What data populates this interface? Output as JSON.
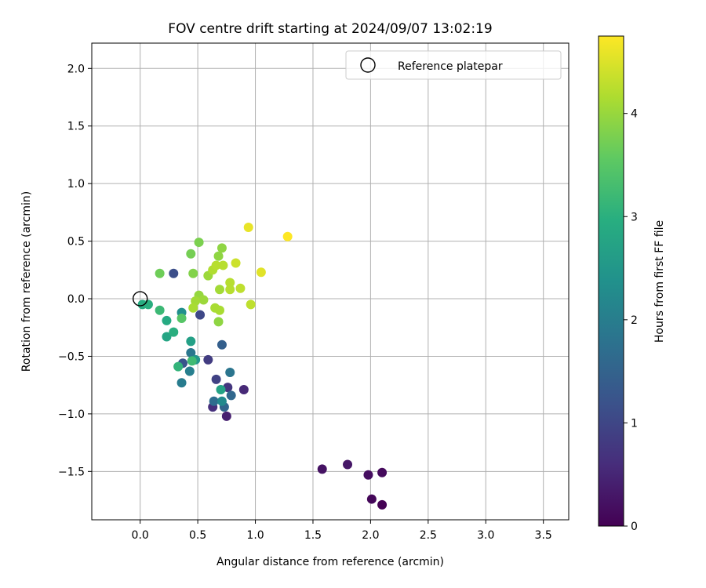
{
  "chart_data": {
    "type": "scatter",
    "title": "FOV centre drift starting at 2024/09/07 13:02:19",
    "xlabel": "Angular distance from reference (arcmin)",
    "ylabel": "Rotation from reference (arcmin)",
    "xlim": [
      -0.42,
      3.72
    ],
    "ylim": [
      -1.92,
      2.22
    ],
    "x_ticks": [
      0.0,
      0.5,
      1.0,
      1.5,
      2.0,
      2.5,
      3.0,
      3.5
    ],
    "x_tick_labels": [
      "0.0",
      "0.5",
      "1.0",
      "1.5",
      "2.0",
      "2.5",
      "3.0",
      "3.5"
    ],
    "y_ticks": [
      -1.5,
      -1.0,
      -0.5,
      0.0,
      0.5,
      1.0,
      1.5,
      2.0
    ],
    "y_tick_labels": [
      "−1.5",
      "−1.0",
      "−0.5",
      "0.0",
      "0.5",
      "1.0",
      "1.5",
      "2.0"
    ],
    "grid": true,
    "legend": {
      "position": "top-right",
      "entries": [
        {
          "label": "Reference platepar",
          "marker": "open-circle"
        }
      ]
    },
    "reference_point": {
      "x": 0.0,
      "y": 0.0
    },
    "colorbar": {
      "label": "Hours from first FF file",
      "colormap": "viridis",
      "range": [
        0,
        4.75
      ],
      "ticks": [
        0,
        1,
        2,
        3,
        4
      ],
      "tick_labels": [
        "0",
        "1",
        "2",
        "3",
        "4"
      ]
    },
    "points": [
      {
        "x": 2.1,
        "y": -1.79,
        "c": 0.0
      },
      {
        "x": 2.01,
        "y": -1.74,
        "c": 0.08
      },
      {
        "x": 2.1,
        "y": -1.51,
        "c": 0.12
      },
      {
        "x": 1.98,
        "y": -1.53,
        "c": 0.18
      },
      {
        "x": 1.58,
        "y": -1.48,
        "c": 0.24
      },
      {
        "x": 1.8,
        "y": -1.44,
        "c": 0.3
      },
      {
        "x": 0.75,
        "y": -1.02,
        "c": 0.42
      },
      {
        "x": 0.9,
        "y": -0.79,
        "c": 0.55
      },
      {
        "x": 0.63,
        "y": -0.94,
        "c": 0.65
      },
      {
        "x": 0.76,
        "y": -0.77,
        "c": 0.75
      },
      {
        "x": 0.59,
        "y": -0.53,
        "c": 0.85
      },
      {
        "x": 0.66,
        "y": -0.7,
        "c": 0.95
      },
      {
        "x": 0.52,
        "y": -0.14,
        "c": 1.05
      },
      {
        "x": 0.29,
        "y": 0.22,
        "c": 1.15
      },
      {
        "x": 0.37,
        "y": -0.56,
        "c": 1.25
      },
      {
        "x": 0.71,
        "y": -0.4,
        "c": 1.45
      },
      {
        "x": 0.73,
        "y": -0.94,
        "c": 1.55
      },
      {
        "x": 0.79,
        "y": -0.84,
        "c": 1.6
      },
      {
        "x": 0.64,
        "y": -0.89,
        "c": 1.7
      },
      {
        "x": 0.78,
        "y": -0.64,
        "c": 1.85
      },
      {
        "x": 0.44,
        "y": -0.47,
        "c": 1.9
      },
      {
        "x": 0.36,
        "y": -0.73,
        "c": 2.0
      },
      {
        "x": 0.43,
        "y": -0.63,
        "c": 2.05
      },
      {
        "x": 0.71,
        "y": -0.89,
        "c": 2.25
      },
      {
        "x": 0.36,
        "y": -0.12,
        "c": 2.35
      },
      {
        "x": 0.48,
        "y": -0.53,
        "c": 2.5
      },
      {
        "x": 0.44,
        "y": -0.37,
        "c": 2.7
      },
      {
        "x": 0.7,
        "y": -0.79,
        "c": 2.75
      },
      {
        "x": 0.23,
        "y": -0.33,
        "c": 2.8
      },
      {
        "x": 0.23,
        "y": -0.19,
        "c": 2.9
      },
      {
        "x": 0.02,
        "y": -0.05,
        "c": 2.95
      },
      {
        "x": 0.07,
        "y": -0.05,
        "c": 3.0
      },
      {
        "x": 0.29,
        "y": -0.29,
        "c": 3.0
      },
      {
        "x": 0.33,
        "y": -0.59,
        "c": 3.1
      },
      {
        "x": 0.17,
        "y": -0.1,
        "c": 3.2
      },
      {
        "x": 0.45,
        "y": -0.54,
        "c": 3.25
      },
      {
        "x": 0.36,
        "y": -0.17,
        "c": 3.5
      },
      {
        "x": 0.17,
        "y": 0.22,
        "c": 3.7
      },
      {
        "x": 0.44,
        "y": 0.39,
        "c": 3.75
      },
      {
        "x": 0.51,
        "y": 0.49,
        "c": 3.8
      },
      {
        "x": 0.46,
        "y": 0.22,
        "c": 3.85
      },
      {
        "x": 0.68,
        "y": -0.2,
        "c": 3.95
      },
      {
        "x": 0.68,
        "y": 0.37,
        "c": 3.95
      },
      {
        "x": 0.71,
        "y": 0.44,
        "c": 3.95
      },
      {
        "x": 0.51,
        "y": 0.03,
        "c": 4.0
      },
      {
        "x": 0.55,
        "y": -0.01,
        "c": 4.05
      },
      {
        "x": 0.59,
        "y": 0.2,
        "c": 4.05
      },
      {
        "x": 0.69,
        "y": 0.08,
        "c": 4.1
      },
      {
        "x": 0.48,
        "y": -0.02,
        "c": 4.1
      },
      {
        "x": 0.46,
        "y": -0.08,
        "c": 4.15
      },
      {
        "x": 0.65,
        "y": -0.08,
        "c": 4.15
      },
      {
        "x": 0.69,
        "y": -0.1,
        "c": 4.15
      },
      {
        "x": 0.63,
        "y": 0.25,
        "c": 4.2
      },
      {
        "x": 0.66,
        "y": 0.29,
        "c": 4.25
      },
      {
        "x": 0.72,
        "y": 0.29,
        "c": 4.25
      },
      {
        "x": 0.78,
        "y": 0.14,
        "c": 4.25
      },
      {
        "x": 0.78,
        "y": 0.08,
        "c": 4.25
      },
      {
        "x": 0.87,
        "y": 0.09,
        "c": 4.3
      },
      {
        "x": 0.96,
        "y": -0.05,
        "c": 4.3
      },
      {
        "x": 0.83,
        "y": 0.31,
        "c": 4.4
      },
      {
        "x": 1.05,
        "y": 0.23,
        "c": 4.55
      },
      {
        "x": 0.94,
        "y": 0.62,
        "c": 4.6
      },
      {
        "x": 1.28,
        "y": 0.54,
        "c": 4.75
      }
    ]
  }
}
